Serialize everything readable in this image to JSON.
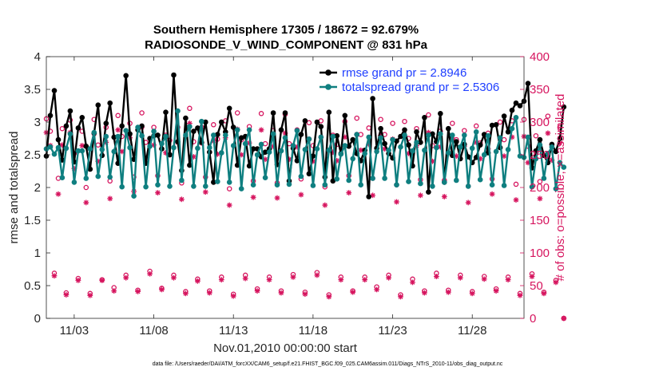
{
  "chart_data": {
    "type": "line",
    "title_line1": "Southern Hemisphere 17305 / 18672 = 92.679%",
    "title_line2": "RADIOSONDE_V_WIND_COMPONENT @ 831 hPa",
    "xlabel": "Nov.01,2010 00:00:00 start",
    "ylabel_left": "rmse and totalspread",
    "ylabel_right": "# of obs: o=possible; ×=assimilated",
    "footer": "data file: /Users/raeder/DAI/ATM_forcXX/CAM6_setup/f.e21.FHIST_BGC.f09_025.CAM6assim.011/Diags_NTrS_2010-11/obs_diag_output.nc",
    "xlim": [
      1.25,
      31.25
    ],
    "ylim_left": [
      0,
      4
    ],
    "ylim_right": [
      0,
      400
    ],
    "x_ticks": [
      3,
      8,
      13,
      18,
      23,
      28
    ],
    "x_tick_labels": [
      "11/03",
      "11/08",
      "11/13",
      "11/18",
      "11/23",
      "11/28"
    ],
    "y_left_ticks": [
      "0",
      "0.5",
      "1",
      "1.5",
      "2",
      "2.5",
      "3",
      "3.5",
      "4"
    ],
    "y_right_ticks": [
      "0",
      "50",
      "100",
      "150",
      "200",
      "250",
      "300",
      "350",
      "400"
    ],
    "legend": [
      {
        "name": "rmse grand pr = 2.8946",
        "color": "#000000"
      },
      {
        "name": "totalspread grand pr = 2.5306",
        "color": "#0f7f80"
      }
    ],
    "colors": {
      "rmse": "#000000",
      "spread": "#0f7f80",
      "obs": "#d6145e",
      "axes": "#262626",
      "legend_text": "#1f3fff"
    },
    "x_start": 1.25,
    "x_step": 0.25,
    "series": [
      {
        "name": "rmse",
        "axis": "left",
        "values": [
          2.48,
          3.1,
          3.48,
          2.73,
          2.42,
          2.94,
          3.17,
          2.39,
          2.91,
          3.07,
          2.63,
          2.28,
          2.83,
          3.26,
          2.49,
          2.98,
          3.29,
          2.77,
          2.37,
          2.94,
          3.71,
          2.82,
          2.43,
          2.88,
          2.94,
          2.37,
          2.75,
          2.79,
          2.8,
          2.59,
          3.15,
          2.5,
          3.72,
          2.7,
          2.26,
          3.06,
          2.34,
          2.86,
          2.91,
          2.69,
          3.0,
          2.54,
          2.08,
          2.81,
          3.0,
          2.85,
          3.21,
          2.92,
          2.34,
          2.76,
          2.78,
          2.33,
          2.59,
          2.59,
          2.47,
          2.54,
          2.59,
          3.14,
          2.35,
          2.88,
          3.14,
          2.1,
          2.6,
          2.41,
          2.81,
          3.02,
          2.21,
          2.48,
          3.0,
          2.93,
          2.16,
          3.15,
          2.1,
          2.79,
          2.52,
          3.1,
          2.63,
          2.73,
          2.52,
          2.41,
          2.57,
          1.86,
          3.36,
          2.6,
          2.9,
          2.67,
          2.52,
          2.45,
          2.71,
          2.78,
          2.88,
          2.65,
          2.33,
          2.85,
          2.69,
          3.07,
          1.93,
          2.82,
          2.7,
          3.13,
          2.08,
          2.9,
          2.49,
          2.7,
          2.44,
          2.66,
          2.47,
          2.38,
          2.46,
          2.65,
          2.81,
          2.53,
          2.95,
          2.96,
          2.61,
          3.09,
          2.85,
          3.18,
          3.29,
          3.25,
          3.32,
          3.59,
          2.3,
          2.56,
          2.73,
          2.49,
          2.38,
          2.66,
          2.55,
          2.75,
          3.23
        ]
      },
      {
        "name": "totalspread",
        "axis": "left",
        "values": [
          2.59,
          2.62,
          2.51,
          2.61,
          2.15,
          2.6,
          2.82,
          2.08,
          2.56,
          2.56,
          2.14,
          2.59,
          2.84,
          2.17,
          2.58,
          2.78,
          2.16,
          2.55,
          2.78,
          2.01,
          2.87,
          2.61,
          1.87,
          2.92,
          2.79,
          2.01,
          2.63,
          2.86,
          2.04,
          2.67,
          2.78,
          2.02,
          2.61,
          3.17,
          2.11,
          2.8,
          2.93,
          2.02,
          2.6,
          3.01,
          2.02,
          2.61,
          2.8,
          2.09,
          2.53,
          2.8,
          2.08,
          2.64,
          2.88,
          1.98,
          2.67,
          2.88,
          2.04,
          2.5,
          2.66,
          2.15,
          2.54,
          2.82,
          2.04,
          2.56,
          2.76,
          2.05,
          2.64,
          2.87,
          2.17,
          2.58,
          2.74,
          2.03,
          2.59,
          2.77,
          2.04,
          2.57,
          2.78,
          2.13,
          2.51,
          2.64,
          2.11,
          2.44,
          2.81,
          2.04,
          2.52,
          2.77,
          2.14,
          2.55,
          2.76,
          2.14,
          2.57,
          2.73,
          2.04,
          2.62,
          2.8,
          2.09,
          2.56,
          2.69,
          2.06,
          2.57,
          2.8,
          2.02,
          2.61,
          2.82,
          2.08,
          2.53,
          2.8,
          2.11,
          2.62,
          2.8,
          2.02,
          2.6,
          2.85,
          2.12,
          2.5,
          2.79,
          2.04,
          2.55,
          2.76,
          2.03,
          2.58,
          2.9,
          3.07,
          2.48,
          2.46,
          2.77,
          2.01,
          2.44,
          2.65,
          2.14,
          2.52,
          2.62,
          1.98,
          2.38,
          2.31
        ]
      },
      {
        "name": "obs possible",
        "axis": "right",
        "values": [
          305,
          286,
          69,
          214,
          290,
          39,
          303,
          252,
          61,
          286,
          200,
          38,
          304,
          265,
          59,
          292,
          210,
          47,
          310,
          278,
          66,
          298,
          216,
          43,
          314,
          269,
          72,
          292,
          218,
          46,
          280,
          272,
          66,
          292,
          207,
          41,
          321,
          270,
          60,
          292,
          216,
          42,
          296,
          274,
          63,
          302,
          198,
          37,
          314,
          273,
          66,
          293,
          210,
          45,
          313,
          267,
          63,
          287,
          207,
          42,
          312,
          267,
          67,
          288,
          213,
          40,
          299,
          264,
          70,
          302,
          201,
          36,
          280,
          266,
          63,
          301,
          218,
          42,
          306,
          281,
          63,
          291,
          214,
          48,
          304,
          281,
          66,
          298,
          204,
          36,
          301,
          275,
          60,
          290,
          212,
          42,
          311,
          264,
          69,
          286,
          211,
          43,
          298,
          273,
          66,
          287,
          202,
          41,
          294,
          268,
          64,
          283,
          213,
          45,
          300,
          273,
          63,
          302,
          205,
          38,
          304,
          263,
          68,
          279,
          209,
          40,
          309,
          265,
          58,
          292,
          0
        ]
      },
      {
        "name": "obs assimilated",
        "axis": "right",
        "values": [
          284,
          264,
          65,
          190,
          265,
          36,
          284,
          229,
          58,
          264,
          177,
          35,
          282,
          240,
          58,
          269,
          183,
          42,
          288,
          255,
          62,
          276,
          194,
          41,
          292,
          244,
          68,
          265,
          192,
          44,
          253,
          250,
          62,
          269,
          182,
          38,
          298,
          247,
          57,
          268,
          193,
          39,
          271,
          251,
          59,
          276,
          173,
          34,
          289,
          250,
          61,
          268,
          185,
          42,
          288,
          243,
          59,
          263,
          184,
          39,
          283,
          243,
          63,
          262,
          189,
          37,
          274,
          240,
          66,
          277,
          173,
          33,
          254,
          241,
          59,
          277,
          192,
          40,
          281,
          257,
          59,
          266,
          188,
          44,
          280,
          259,
          62,
          274,
          178,
          33,
          278,
          252,
          55,
          264,
          188,
          39,
          284,
          240,
          64,
          262,
          186,
          40,
          274,
          248,
          62,
          263,
          177,
          38,
          269,
          244,
          60,
          259,
          190,
          42,
          275,
          248,
          59,
          277,
          181,
          35,
          278,
          238,
          64,
          254,
          183,
          38,
          283,
          242,
          55,
          268,
          0
        ]
      }
    ]
  }
}
